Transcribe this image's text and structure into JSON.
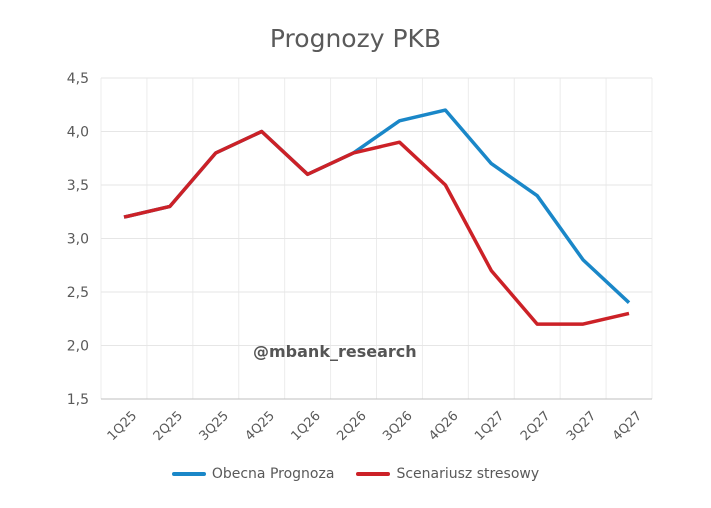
{
  "chart_data": {
    "type": "line",
    "title": "Prognozy PKB",
    "categories": [
      "1Q25",
      "2Q25",
      "3Q25",
      "4Q25",
      "1Q26",
      "2Q26",
      "3Q26",
      "4Q26",
      "1Q27",
      "2Q27",
      "3Q27",
      "4Q27"
    ],
    "ylim": [
      1.5,
      4.5
    ],
    "yticks": [
      "1,5",
      "2,0",
      "2,5",
      "3,0",
      "3,5",
      "4,0",
      "4,5"
    ],
    "ytick_values": [
      1.5,
      2.0,
      2.5,
      3.0,
      3.5,
      4.0,
      4.5
    ],
    "grid": true,
    "legend_position": "bottom",
    "series": [
      {
        "name": "Obecna Prognoza",
        "color": "#1a87c8",
        "values": [
          3.2,
          3.3,
          3.8,
          4.0,
          3.6,
          3.8,
          4.1,
          4.2,
          3.7,
          3.4,
          2.8,
          2.4
        ]
      },
      {
        "name": "Scenariusz stresowy",
        "color": "#cc2127",
        "values": [
          3.2,
          3.3,
          3.8,
          4.0,
          3.6,
          3.8,
          3.9,
          3.5,
          2.7,
          2.2,
          2.2,
          2.3
        ]
      }
    ],
    "annotation": "@mbank_research"
  }
}
